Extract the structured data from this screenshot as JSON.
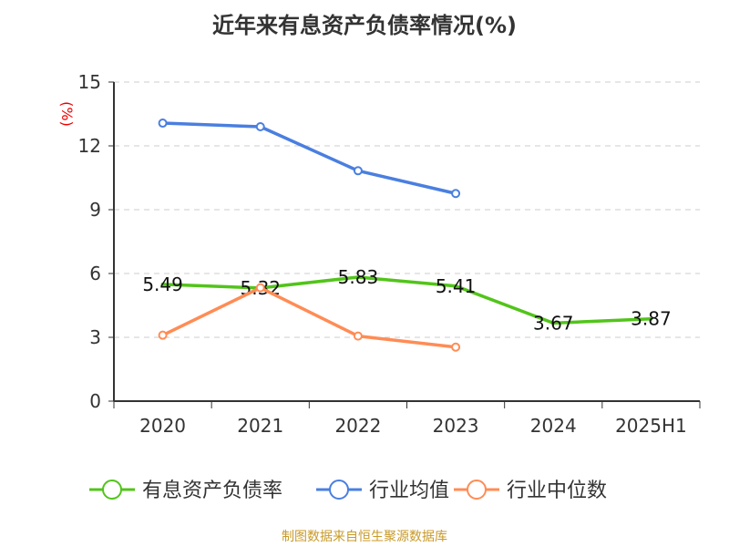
{
  "chart_data": {
    "type": "line",
    "title": "近年来有息资产负债率情况(%)",
    "ylabel": "(%)",
    "categories": [
      "2020",
      "2021",
      "2022",
      "2023",
      "2024",
      "2025H1"
    ],
    "ylim": [
      0,
      15
    ],
    "yticks": [
      0,
      3,
      6,
      9,
      12,
      15
    ],
    "grid": true,
    "legend_position": "bottom",
    "series": [
      {
        "name": "有息资产负债率",
        "color": "#52c41a",
        "values": [
          5.49,
          5.32,
          5.83,
          5.41,
          3.67,
          3.87
        ],
        "labels": [
          "5.49",
          "5.32",
          "5.83",
          "5.41",
          "3.67",
          "3.87"
        ]
      },
      {
        "name": "行业均值",
        "color": "#4a7fe0",
        "values": [
          13.07,
          12.9,
          10.83,
          9.76,
          null,
          null
        ]
      },
      {
        "name": "行业中位数",
        "color": "#ff8c55",
        "values": [
          3.1,
          5.33,
          3.06,
          2.54,
          null,
          null
        ]
      }
    ]
  },
  "source": "制图数据来自恒生聚源数据库"
}
